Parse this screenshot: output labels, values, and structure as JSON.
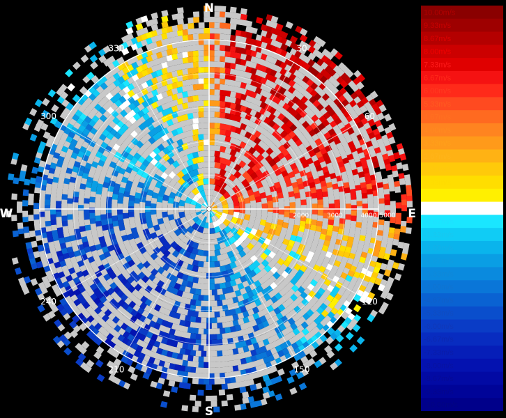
{
  "compass": {
    "north": "N",
    "south": "S",
    "east": "E",
    "west": "W",
    "degree_labels": [
      {
        "label": "30",
        "deg": 30
      },
      {
        "label": "60",
        "deg": 60
      },
      {
        "label": "120",
        "deg": 120
      },
      {
        "label": "150",
        "deg": 150
      },
      {
        "label": "210",
        "deg": 210
      },
      {
        "label": "240",
        "deg": 240
      },
      {
        "label": "300",
        "deg": 300
      },
      {
        "label": "330",
        "deg": 330
      }
    ],
    "range_labels": [
      "2000",
      "3000",
      "4000",
      "5000"
    ]
  },
  "legend": {
    "entries": [
      {
        "label": "10.00m/s",
        "color": "#8a0000",
        "text_color": "#b00000"
      },
      {
        "label": "9.33m/s",
        "color": "#9e0000",
        "text_color": "#c80000"
      },
      {
        "label": "8.67m/s",
        "color": "#b40000",
        "text_color": "#dc0000"
      },
      {
        "label": "8.00m/s",
        "color": "#cc0000",
        "text_color": "#f00000"
      },
      {
        "label": "7.33m/s",
        "color": "#e00000",
        "text_color": "#ff1a1a"
      },
      {
        "label": "6.67m/s",
        "color": "#f51212",
        "text_color": "#ff2a1a"
      },
      {
        "label": "6.00m/s",
        "color": "#ff2a1a",
        "text_color": "#ff3a20"
      },
      {
        "label": "5.33m/s",
        "color": "#ff4a20",
        "text_color": "#ff5a20"
      },
      {
        "label": "4.67m/s",
        "color": "#ff6a20",
        "text_color": "#ff7020"
      },
      {
        "label": "4.00m/s",
        "color": "#ff8420",
        "text_color": "#ff8a20"
      },
      {
        "label": "3.33m/s",
        "color": "#ff9a1a",
        "text_color": "#ffa01a"
      },
      {
        "label": "2.67m/s",
        "color": "#ffb214",
        "text_color": "#ffb41a"
      },
      {
        "label": "2.00m/s",
        "color": "#ffca0a",
        "text_color": "#ffc810"
      },
      {
        "label": "1.33m/s",
        "color": "#ffde00",
        "text_color": "#ffdc00"
      },
      {
        "label": "0.67m/s",
        "color": "#fff000",
        "text_color": "#fff000"
      },
      {
        "label": "0.00m/s",
        "color": "#ffffff",
        "text_color": "#ffffff"
      },
      {
        "label": "-0.67m/s",
        "color": "#1ae6ff",
        "text_color": "#20e0ff"
      },
      {
        "label": "-1.33m/s",
        "color": "#10ccf5",
        "text_color": "#18c8f0"
      },
      {
        "label": "-2.00m/s",
        "color": "#0ab4ec",
        "text_color": "#14b0e8"
      },
      {
        "label": "-2.67m/s",
        "color": "#0a9ee4",
        "text_color": "#109ce0"
      },
      {
        "label": "-3.33m/s",
        "color": "#0a8ade",
        "text_color": "#1088d8"
      },
      {
        "label": "-4.00m/s",
        "color": "#0a76d8",
        "text_color": "#1074d0"
      },
      {
        "label": "-4.67m/s",
        "color": "#0a62d2",
        "text_color": "#1060c8"
      },
      {
        "label": "-5.33m/s",
        "color": "#0a4ecc",
        "text_color": "#104cc0"
      },
      {
        "label": "-6.00m/s",
        "color": "#0a3cc6",
        "text_color": "#1038b8"
      },
      {
        "label": "-6.67m/s",
        "color": "#082cc0",
        "text_color": "#0c28b0"
      },
      {
        "label": "-7.33m/s",
        "color": "#061eb8",
        "text_color": "#0a1ca8"
      },
      {
        "label": "-8.00m/s",
        "color": "#0412b0",
        "text_color": "#0812a0"
      },
      {
        "label": "-8.67m/s",
        "color": "#020aa4",
        "text_color": "#060a96"
      },
      {
        "label": "-9.33m/s",
        "color": "#000498",
        "text_color": "#04068c"
      },
      {
        "label": "-10.00m/s",
        "color": "#00008a",
        "text_color": "#020480"
      }
    ]
  }
}
